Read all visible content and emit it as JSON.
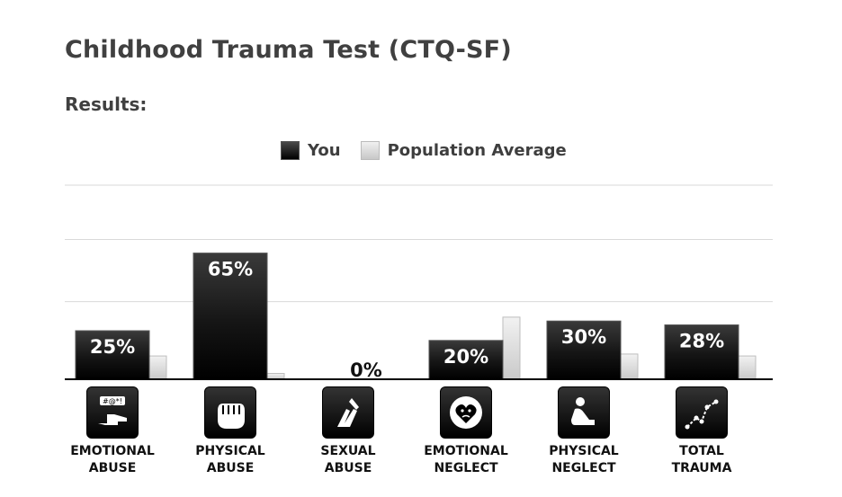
{
  "page": {
    "title": "Childhood Trauma Test (CTQ-SF)",
    "results_heading": "Results:"
  },
  "legend": {
    "you": "You",
    "population": "Population Average"
  },
  "colors": {
    "you_bar": "#000000",
    "population_bar": "#d6d6d6",
    "gridline": "#d9d9d9",
    "baseline": "#000000"
  },
  "categories": [
    {
      "label": "EMOTIONAL\nABUSE",
      "icon": "pointing-hand-icon"
    },
    {
      "label": "PHYSICAL\nABUSE",
      "icon": "fist-icon"
    },
    {
      "label": "SEXUAL\nABUSE",
      "icon": "grabbing-hands-icon"
    },
    {
      "label": "EMOTIONAL\nNEGLECT",
      "icon": "sad-heart-icon"
    },
    {
      "label": "PHYSICAL\nNEGLECT",
      "icon": "huddled-person-icon"
    },
    {
      "label": "TOTAL\nTRAUMA",
      "icon": "rising-trend-icon"
    }
  ],
  "chart_data": {
    "type": "bar",
    "categories": [
      "EMOTIONAL ABUSE",
      "PHYSICAL ABUSE",
      "SEXUAL ABUSE",
      "EMOTIONAL NEGLECT",
      "PHYSICAL NEGLECT",
      "TOTAL TRAUMA"
    ],
    "series": [
      {
        "name": "You",
        "values": [
          25,
          65,
          0,
          20,
          30,
          28
        ],
        "labels": [
          "25%",
          "65%",
          "0%",
          "20%",
          "30%",
          "28%"
        ]
      },
      {
        "name": "Population Average",
        "values": [
          12,
          3,
          0,
          32,
          13,
          12
        ]
      }
    ],
    "ylim": [
      0,
      100
    ],
    "grid": true,
    "legend_position": "top-center"
  }
}
